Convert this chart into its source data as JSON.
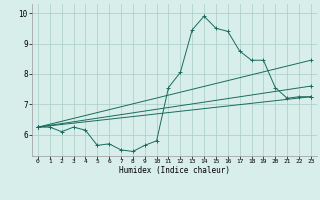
{
  "xlabel": "Humidex (Indice chaleur)",
  "bg_color": "#d8eeea",
  "grid_color": "#aaccc6",
  "line_color": "#1a6b5e",
  "xlim": [
    -0.5,
    23.5
  ],
  "ylim": [
    5.3,
    10.3
  ],
  "yticks": [
    6,
    7,
    8,
    9,
    10
  ],
  "xticks": [
    0,
    1,
    2,
    3,
    4,
    5,
    6,
    7,
    8,
    9,
    10,
    11,
    12,
    13,
    14,
    15,
    16,
    17,
    18,
    19,
    20,
    21,
    22,
    23
  ],
  "series": [
    {
      "x": [
        0,
        1,
        2,
        3,
        4,
        5,
        6,
        7,
        8,
        9,
        10,
        11,
        12,
        13,
        14,
        15,
        16,
        17,
        18,
        19,
        20,
        21,
        22,
        23
      ],
      "y": [
        6.25,
        6.25,
        6.1,
        6.25,
        6.15,
        5.65,
        5.7,
        5.5,
        5.45,
        5.65,
        5.8,
        7.55,
        8.05,
        9.45,
        9.9,
        9.5,
        9.4,
        8.75,
        8.45,
        8.45,
        7.55,
        7.2,
        7.25,
        7.25
      ]
    },
    {
      "x": [
        0,
        23
      ],
      "y": [
        6.25,
        7.25
      ]
    },
    {
      "x": [
        0,
        23
      ],
      "y": [
        6.25,
        7.6
      ]
    },
    {
      "x": [
        0,
        23
      ],
      "y": [
        6.25,
        8.45
      ]
    }
  ]
}
